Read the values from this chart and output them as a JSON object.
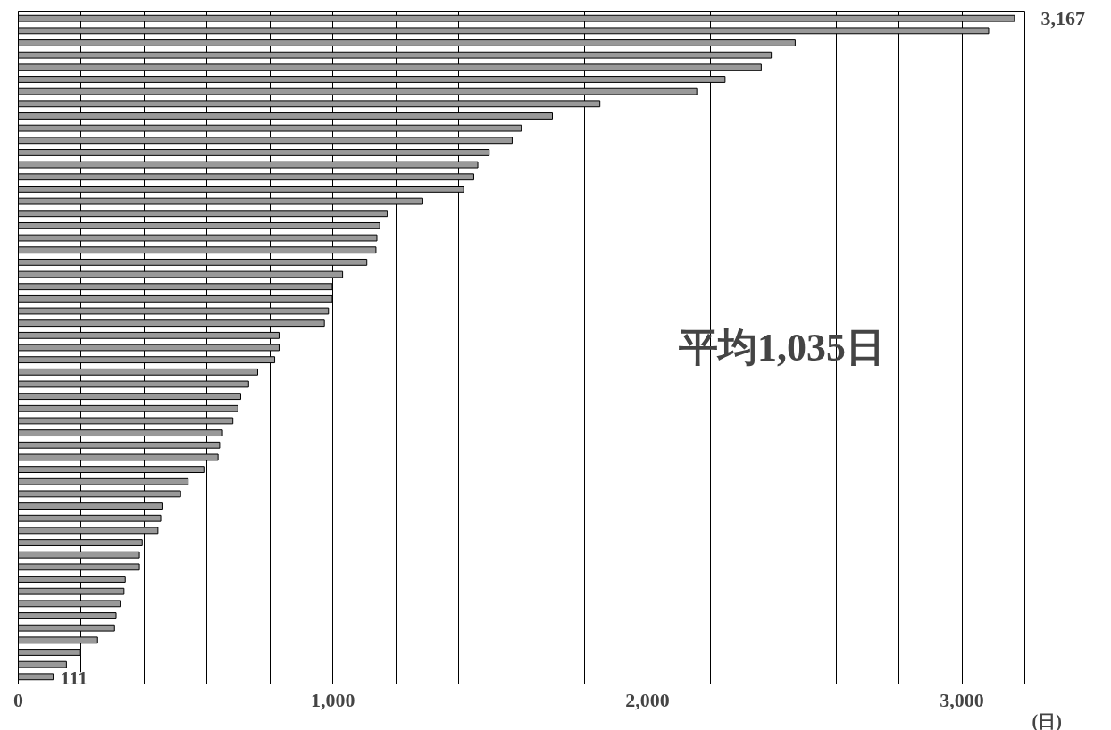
{
  "chart_data": {
    "type": "bar",
    "orientation": "horizontal",
    "xlabel": "(日)",
    "categories": [
      null,
      null,
      null,
      null,
      null,
      null,
      null,
      null,
      null,
      null,
      null,
      null,
      null,
      null,
      null,
      null,
      null,
      null,
      null,
      null,
      null,
      null,
      null,
      null,
      null,
      null,
      null,
      null,
      null,
      null,
      null,
      null,
      null,
      null,
      null,
      null,
      null,
      null,
      null,
      null,
      null,
      null,
      null,
      null,
      null,
      null,
      null,
      null,
      null,
      null,
      null,
      null,
      null,
      null,
      null
    ],
    "values": [
      3167,
      3085,
      2470,
      2394,
      2362,
      2247,
      2157,
      1849,
      1698,
      1599,
      1570,
      1497,
      1461,
      1448,
      1416,
      1286,
      1173,
      1149,
      1140,
      1137,
      1108,
      1031,
      998,
      998,
      986,
      973,
      829,
      829,
      815,
      761,
      732,
      707,
      698,
      682,
      649,
      640,
      635,
      590,
      540,
      516,
      457,
      453,
      444,
      394,
      385,
      385,
      340,
      336,
      324,
      311,
      306,
      252,
      198,
      153,
      111
    ],
    "value_labels": [
      "3,167",
      null,
      null,
      null,
      null,
      null,
      null,
      null,
      null,
      null,
      null,
      null,
      null,
      null,
      null,
      null,
      null,
      null,
      null,
      null,
      null,
      null,
      null,
      null,
      null,
      null,
      null,
      null,
      null,
      null,
      null,
      null,
      null,
      null,
      null,
      null,
      null,
      null,
      null,
      null,
      null,
      null,
      null,
      null,
      null,
      null,
      null,
      null,
      null,
      null,
      null,
      null,
      null,
      null,
      "111"
    ],
    "color": "#999999",
    "xlim": [
      0,
      3200
    ],
    "xticks": [
      0,
      {
        "value": 200,
        "label": null
      },
      {
        "value": 400,
        "label": null
      },
      {
        "value": 600,
        "label": null
      },
      {
        "value": 800,
        "label": null
      },
      {
        "value": 1000,
        "label": "1,000"
      },
      {
        "value": 1200,
        "label": null
      },
      {
        "value": 1400,
        "label": null
      },
      {
        "value": 1600,
        "label": null
      },
      {
        "value": 1800,
        "label": null
      },
      {
        "value": 2000,
        "label": "2,000"
      },
      {
        "value": 2200,
        "label": null
      },
      {
        "value": 2400,
        "label": null
      },
      {
        "value": 2600,
        "label": null
      },
      {
        "value": 2800,
        "label": null
      },
      {
        "value": 3000,
        "label": "3,000"
      },
      {
        "value": 3200,
        "label": null
      }
    ],
    "grid": "x",
    "tick_labels": "x",
    "annotations": [
      "平均1,035日"
    ]
  }
}
